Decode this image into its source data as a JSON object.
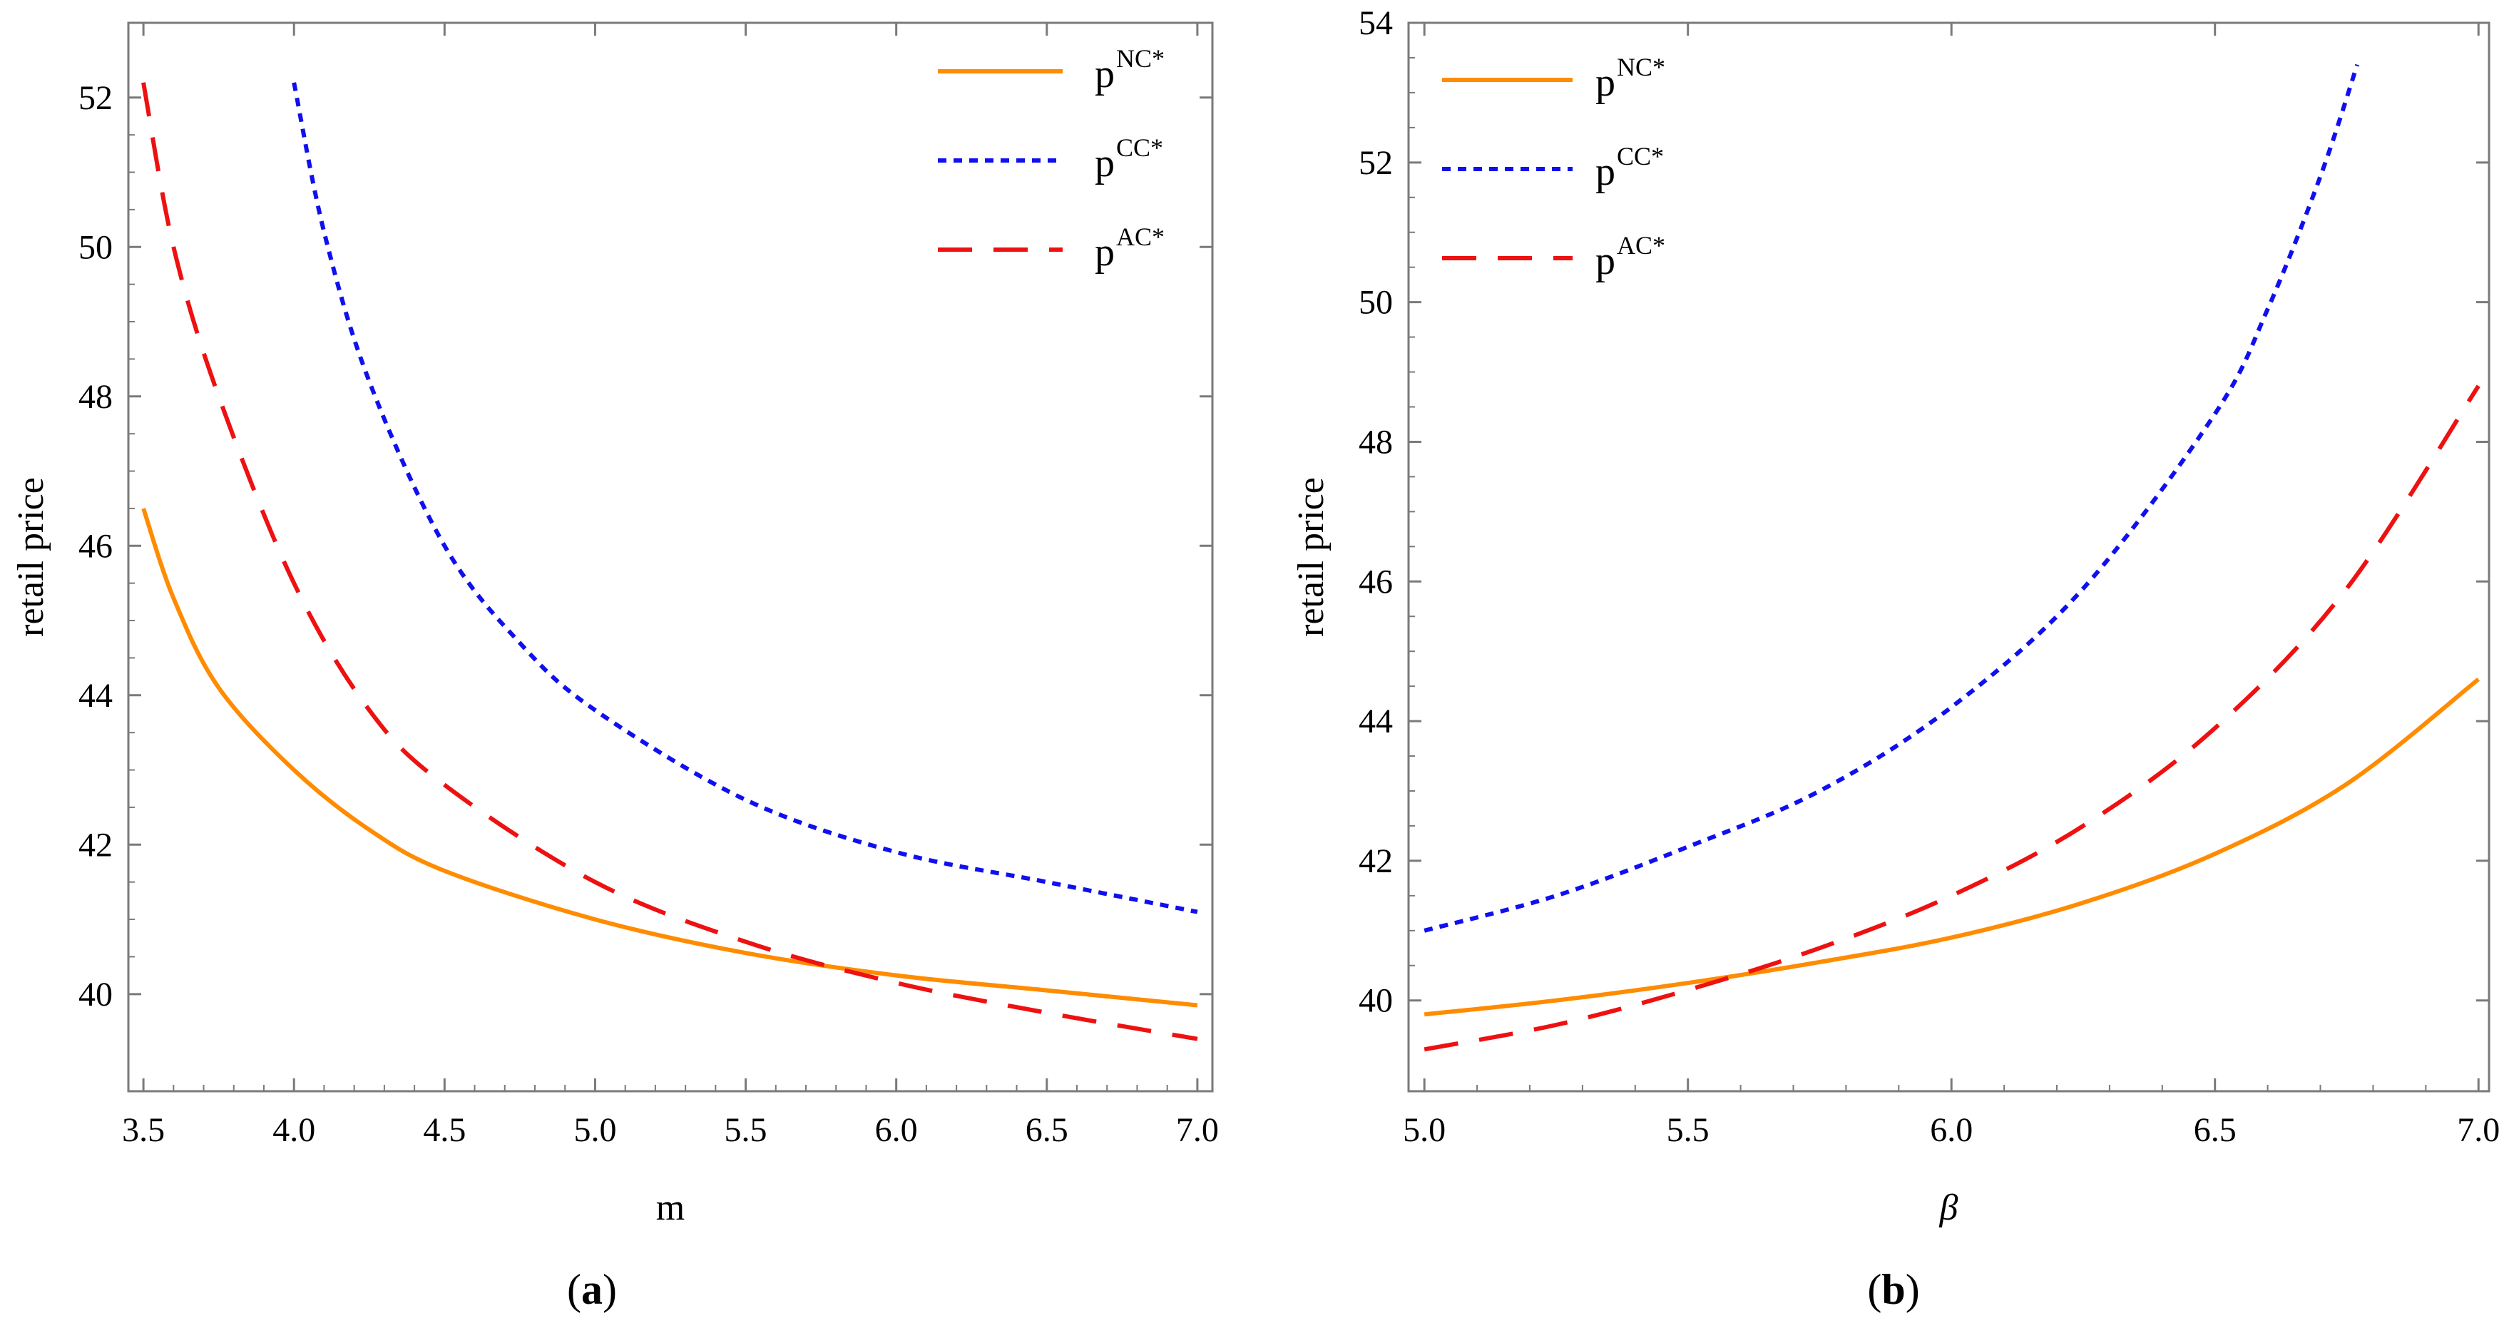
{
  "chart_data": [
    {
      "panel": "a",
      "type": "line",
      "caption_label": "a",
      "xlabel": "m",
      "ylabel": "retail price",
      "xlim": [
        3.45,
        7.05
      ],
      "ylim": [
        38.7,
        53.0
      ],
      "xticks": [
        3.5,
        4.0,
        4.5,
        5.0,
        5.5,
        6.0,
        6.5,
        7.0
      ],
      "xtick_labels": [
        "3.5",
        "4.0",
        "4.5",
        "5.0",
        "5.5",
        "6.0",
        "6.5",
        "7.0"
      ],
      "yticks": [
        40,
        42,
        44,
        46,
        48,
        50,
        52
      ],
      "ytick_labels": [
        "40",
        "42",
        "44",
        "46",
        "48",
        "50",
        "52"
      ],
      "legend_position": "top-right",
      "series": [
        {
          "name": "NC",
          "base": "p",
          "sup": "NC*",
          "color": "#FF8C00",
          "style": "solid",
          "x": [
            3.5,
            3.6,
            3.75,
            4.0,
            4.25,
            4.5,
            5.0,
            5.5,
            6.0,
            6.5,
            7.0
          ],
          "y": [
            46.5,
            45.3,
            44.1,
            43.0,
            42.2,
            41.65,
            41.0,
            40.55,
            40.25,
            40.05,
            39.85
          ]
        },
        {
          "name": "CC",
          "base": "p",
          "sup": "CC*",
          "color": "#1010EE",
          "style": "dotted",
          "x": [
            4.0,
            4.1,
            4.25,
            4.5,
            4.75,
            5.0,
            5.5,
            6.0,
            6.5,
            7.0
          ],
          "y": [
            52.2,
            50.2,
            48.2,
            46.0,
            44.7,
            43.8,
            42.6,
            41.9,
            41.5,
            41.1
          ]
        },
        {
          "name": "AC",
          "base": "p",
          "sup": "AC*",
          "color": "#EE1111",
          "style": "dashed",
          "x": [
            3.5,
            3.6,
            3.75,
            4.0,
            4.25,
            4.5,
            5.0,
            5.5,
            6.0,
            6.5,
            7.0
          ],
          "y": [
            52.2,
            50.0,
            48.0,
            45.5,
            43.8,
            42.8,
            41.5,
            40.7,
            40.15,
            39.75,
            39.4
          ]
        }
      ]
    },
    {
      "panel": "b",
      "type": "line",
      "caption_label": "b",
      "xlabel": "β",
      "ylabel": "retail price",
      "xlim": [
        4.97,
        7.02
      ],
      "ylim": [
        38.7,
        54.0
      ],
      "xticks": [
        5.0,
        5.5,
        6.0,
        6.5,
        7.0
      ],
      "xtick_labels": [
        "5.0",
        "5.5",
        "6.0",
        "6.5",
        "7.0"
      ],
      "yticks": [
        40,
        42,
        44,
        46,
        48,
        50,
        52,
        54
      ],
      "ytick_labels": [
        "40",
        "42",
        "44",
        "46",
        "48",
        "50",
        "52",
        "54"
      ],
      "legend_position": "top-left",
      "series": [
        {
          "name": "NC",
          "base": "p",
          "sup": "NC*",
          "color": "#FF8C00",
          "style": "solid",
          "x": [
            5.0,
            5.25,
            5.5,
            5.75,
            6.0,
            6.25,
            6.5,
            6.75,
            7.0
          ],
          "y": [
            39.8,
            40.0,
            40.25,
            40.55,
            40.9,
            41.4,
            42.1,
            43.1,
            44.6
          ]
        },
        {
          "name": "CC",
          "base": "p",
          "sup": "CC*",
          "color": "#1010EE",
          "style": "dotted",
          "x": [
            5.0,
            5.25,
            5.5,
            5.75,
            6.0,
            6.25,
            6.5,
            6.6,
            6.7,
            6.77
          ],
          "y": [
            41.0,
            41.5,
            42.2,
            43.0,
            44.2,
            45.9,
            48.4,
            49.9,
            51.8,
            53.4
          ]
        },
        {
          "name": "AC",
          "base": "p",
          "sup": "AC*",
          "color": "#EE1111",
          "style": "dashed",
          "x": [
            5.0,
            5.25,
            5.5,
            5.75,
            6.0,
            6.25,
            6.5,
            6.75,
            7.0
          ],
          "y": [
            39.3,
            39.65,
            40.15,
            40.75,
            41.5,
            42.5,
            43.9,
            45.9,
            48.8
          ]
        }
      ]
    }
  ]
}
